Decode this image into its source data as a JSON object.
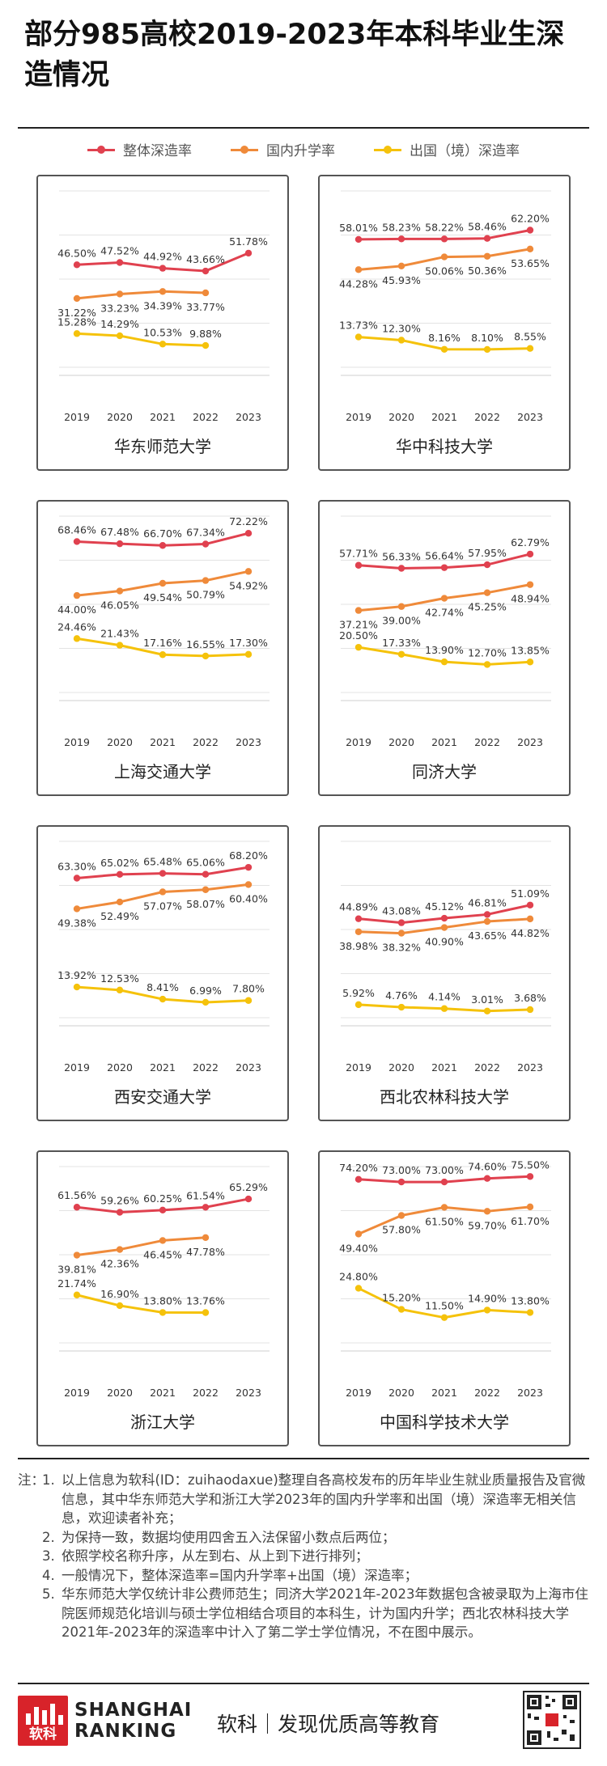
{
  "page": {
    "title": "部分985高校2019-2023年本科毕业生深造情况",
    "legend": [
      {
        "label": "整体深造率",
        "color": "#e0414f"
      },
      {
        "label": "国内升学率",
        "color": "#ef8a3a"
      },
      {
        "label": "出国（境）深造率",
        "color": "#f5c20b"
      }
    ]
  },
  "chart_data": [
    {
      "type": "line",
      "school": "华东师范大学",
      "categories": [
        "2019",
        "2020",
        "2021",
        "2022",
        "2023"
      ],
      "series": [
        {
          "name": "整体深造率",
          "values": [
            46.5,
            47.52,
            44.92,
            43.66,
            51.78
          ]
        },
        {
          "name": "国内升学率",
          "values": [
            31.22,
            33.23,
            34.39,
            33.77,
            null
          ]
        },
        {
          "name": "出国（境）深造率",
          "values": [
            15.28,
            14.29,
            10.53,
            9.88,
            null
          ]
        }
      ]
    },
    {
      "type": "line",
      "school": "华中科技大学",
      "categories": [
        "2019",
        "2020",
        "2021",
        "2022",
        "2023"
      ],
      "series": [
        {
          "name": "整体深造率",
          "values": [
            58.01,
            58.23,
            58.22,
            58.46,
            62.2
          ]
        },
        {
          "name": "国内升学率",
          "values": [
            44.28,
            45.93,
            50.06,
            50.36,
            53.65
          ]
        },
        {
          "name": "出国（境）深造率",
          "values": [
            13.73,
            12.3,
            8.16,
            8.1,
            8.55
          ]
        }
      ]
    },
    {
      "type": "line",
      "school": "上海交通大学",
      "categories": [
        "2019",
        "2020",
        "2021",
        "2022",
        "2023"
      ],
      "series": [
        {
          "name": "整体深造率",
          "values": [
            68.46,
            67.48,
            66.7,
            67.34,
            72.22
          ]
        },
        {
          "name": "国内升学率",
          "values": [
            44.0,
            46.05,
            49.54,
            50.79,
            54.92
          ]
        },
        {
          "name": "出国（境）深造率",
          "values": [
            24.46,
            21.43,
            17.16,
            16.55,
            17.3
          ]
        }
      ]
    },
    {
      "type": "line",
      "school": "同济大学",
      "categories": [
        "2019",
        "2020",
        "2021",
        "2022",
        "2023"
      ],
      "series": [
        {
          "name": "整体深造率",
          "values": [
            57.71,
            56.33,
            56.64,
            57.95,
            62.79
          ]
        },
        {
          "name": "国内升学率",
          "values": [
            37.21,
            39.0,
            42.74,
            45.25,
            48.94
          ]
        },
        {
          "name": "出国（境）深造率",
          "values": [
            20.5,
            17.33,
            13.9,
            12.7,
            13.85
          ]
        }
      ]
    },
    {
      "type": "line",
      "school": "西安交通大学",
      "categories": [
        "2019",
        "2020",
        "2021",
        "2022",
        "2023"
      ],
      "series": [
        {
          "name": "整体深造率",
          "values": [
            63.3,
            65.02,
            65.48,
            65.06,
            68.2
          ]
        },
        {
          "name": "国内升学率",
          "values": [
            49.38,
            52.49,
            57.07,
            58.07,
            60.4
          ]
        },
        {
          "name": "出国（境）深造率",
          "values": [
            13.92,
            12.53,
            8.41,
            6.99,
            7.8
          ]
        }
      ]
    },
    {
      "type": "line",
      "school": "西北农林科技大学",
      "categories": [
        "2019",
        "2020",
        "2021",
        "2022",
        "2023"
      ],
      "series": [
        {
          "name": "整体深造率",
          "values": [
            44.89,
            43.08,
            45.12,
            46.81,
            51.09
          ]
        },
        {
          "name": "国内升学率",
          "values": [
            38.98,
            38.32,
            40.9,
            43.65,
            44.82
          ]
        },
        {
          "name": "出国（境）深造率",
          "values": [
            5.92,
            4.76,
            4.14,
            3.01,
            3.68
          ]
        }
      ]
    },
    {
      "type": "line",
      "school": "浙江大学",
      "categories": [
        "2019",
        "2020",
        "2021",
        "2022",
        "2023"
      ],
      "series": [
        {
          "name": "整体深造率",
          "values": [
            61.56,
            59.26,
            60.25,
            61.54,
            65.29
          ]
        },
        {
          "name": "国内升学率",
          "values": [
            39.81,
            42.36,
            46.45,
            47.78,
            null
          ]
        },
        {
          "name": "出国（境）深造率",
          "values": [
            21.74,
            16.9,
            13.8,
            13.76,
            null
          ]
        }
      ]
    },
    {
      "type": "line",
      "school": "中国科学技术大学",
      "categories": [
        "2019",
        "2020",
        "2021",
        "2022",
        "2023"
      ],
      "series": [
        {
          "name": "整体深造率",
          "values": [
            74.2,
            73.0,
            73.0,
            74.6,
            75.5
          ]
        },
        {
          "name": "国内升学率",
          "values": [
            49.4,
            57.8,
            61.5,
            59.7,
            61.7
          ]
        },
        {
          "name": "出国（境）深造率",
          "values": [
            24.8,
            15.2,
            11.5,
            14.9,
            13.8
          ]
        }
      ]
    }
  ],
  "notes": {
    "label": "注：",
    "items": [
      {
        "num": "1.",
        "text": "以上信息为软科(ID：zuihaodaxue)整理自各高校发布的历年毕业生就业质量报告及官微信息，其中华东师范大学和浙江大学2023年的国内升学率和出国（境）深造率无相关信息，欢迎读者补充；"
      },
      {
        "num": "2.",
        "text": "为保持一致，数据均使用四舍五入法保留小数点后两位；"
      },
      {
        "num": "3.",
        "text": "依照学校名称升序，从左到右、从上到下进行排列；"
      },
      {
        "num": "4.",
        "text": "一般情况下，整体深造率=国内升学率+出国（境）深造率；"
      },
      {
        "num": "5.",
        "text": "华东师范大学仅统计非公费师范生；同济大学2021年-2023年数据包含被录取为上海市住院医师规范化培训与硕士学位相结合项目的本科生，计为国内升学；西北农林科技大学2021年-2023年的深造率中计入了第二学士学位情况，不在图中展示。"
      }
    ]
  },
  "footer": {
    "logo_char": "软科",
    "logo_line1": "SHANGHAI",
    "logo_line2": "RANKING",
    "slogan": "软科｜发现优质高等教育"
  },
  "colors": {
    "overall": "#e0414f",
    "domestic": "#ef8a3a",
    "abroad": "#f5c20b"
  }
}
